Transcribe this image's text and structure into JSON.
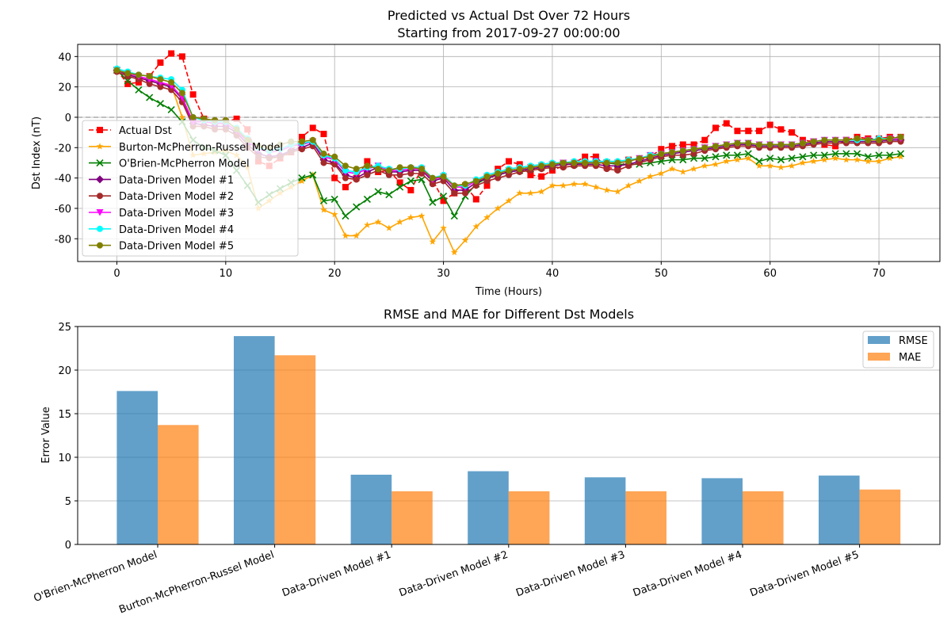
{
  "chart_data": [
    {
      "type": "line",
      "title": "Predicted vs Actual Dst Over 72 Hours",
      "subtitle": "Starting from 2017-09-27 00:00:00",
      "xlabel": "Time (Hours)",
      "ylabel": "Dst Index (nT)",
      "xlim": [
        -3.6,
        75.6
      ],
      "ylim": [
        -95,
        48
      ],
      "xticks": [
        0,
        10,
        20,
        30,
        40,
        50,
        60,
        70
      ],
      "yticks": [
        -80,
        -60,
        -40,
        -20,
        0,
        20,
        40
      ],
      "grid": true,
      "zero_line": 0,
      "legend_position": "center-left",
      "x": [
        0,
        1,
        2,
        3,
        4,
        5,
        6,
        7,
        8,
        9,
        10,
        11,
        12,
        13,
        14,
        15,
        16,
        17,
        18,
        19,
        20,
        21,
        22,
        23,
        24,
        25,
        26,
        27,
        28,
        29,
        30,
        31,
        32,
        33,
        34,
        35,
        36,
        37,
        38,
        39,
        40,
        41,
        42,
        43,
        44,
        45,
        46,
        47,
        48,
        49,
        50,
        51,
        52,
        53,
        54,
        55,
        56,
        57,
        58,
        59,
        60,
        61,
        62,
        63,
        64,
        65,
        66,
        67,
        68,
        69,
        70,
        71,
        72
      ],
      "series": [
        {
          "name": "Actual Dst",
          "color": "#ff0000",
          "marker": "square",
          "dashed": true,
          "values": [
            31,
            22,
            23,
            27,
            36,
            42,
            40,
            15,
            -1,
            -3,
            -3,
            -1,
            -8,
            -29,
            -32,
            -27,
            -23,
            -13,
            -7,
            -11,
            -40,
            -46,
            -40,
            -29,
            -36,
            -35,
            -43,
            -48,
            -34,
            -41,
            -55,
            -50,
            -45,
            -54,
            -45,
            -34,
            -29,
            -31,
            -38,
            -39,
            -35,
            -32,
            -30,
            -26,
            -26,
            -33,
            -34,
            -28,
            -28,
            -26,
            -21,
            -19,
            -18,
            -18,
            -15,
            -7,
            -4,
            -9,
            -9,
            -9,
            -5,
            -8,
            -10,
            -15,
            -16,
            -18,
            -19,
            -15,
            -13,
            -14,
            -14,
            -13,
            -13
          ]
        },
        {
          "name": "Burton-McPherron-Russel Model",
          "color": "#ffa500",
          "marker": "star",
          "dashed": false,
          "values": [
            31,
            28,
            26,
            24,
            22,
            21,
            0,
            -25,
            -24,
            -23,
            -22,
            -25,
            -33,
            -60,
            -55,
            -50,
            -46,
            -42,
            -38,
            -61,
            -64,
            -78,
            -78,
            -71,
            -69,
            -73,
            -69,
            -66,
            -65,
            -82,
            -73,
            -89,
            -81,
            -72,
            -66,
            -60,
            -55,
            -50,
            -50,
            -49,
            -45,
            -45,
            -44,
            -44,
            -46,
            -48,
            -49,
            -45,
            -42,
            -39,
            -37,
            -34,
            -36,
            -34,
            -32,
            -31,
            -29,
            -28,
            -27,
            -32,
            -32,
            -33,
            -32,
            -30,
            -29,
            -28,
            -27,
            -28,
            -28,
            -29,
            -29,
            -27,
            -26
          ]
        },
        {
          "name": "O'Brien-McPherron Model",
          "color": "#008000",
          "marker": "x",
          "dashed": false,
          "values": [
            31,
            24,
            18,
            13,
            9,
            5,
            -3,
            -15,
            -20,
            -22,
            -25,
            -35,
            -45,
            -56,
            -51,
            -47,
            -43,
            -40,
            -38,
            -55,
            -54,
            -65,
            -59,
            -54,
            -49,
            -51,
            -46,
            -42,
            -41,
            -56,
            -52,
            -65,
            -52,
            -44,
            -40,
            -38,
            -36,
            -35,
            -34,
            -33,
            -32,
            -31,
            -31,
            -30,
            -30,
            -30,
            -31,
            -31,
            -31,
            -30,
            -29,
            -28,
            -28,
            -27,
            -27,
            -26,
            -25,
            -25,
            -24,
            -29,
            -27,
            -28,
            -27,
            -26,
            -25,
            -25,
            -24,
            -24,
            -24,
            -26,
            -25,
            -25,
            -24
          ]
        },
        {
          "name": "Data-Driven Model #1",
          "color": "#800080",
          "marker": "diamond",
          "dashed": false,
          "values": [
            31,
            28,
            26,
            24,
            22,
            20,
            12,
            -4,
            -5,
            -6,
            -6,
            -10,
            -18,
            -24,
            -26,
            -25,
            -22,
            -20,
            -17,
            -28,
            -30,
            -38,
            -40,
            -36,
            -33,
            -36,
            -36,
            -35,
            -35,
            -42,
            -40,
            -48,
            -48,
            -43,
            -40,
            -38,
            -36,
            -35,
            -34,
            -33,
            -32,
            -31,
            -31,
            -31,
            -31,
            -32,
            -32,
            -31,
            -29,
            -27,
            -25,
            -24,
            -23,
            -22,
            -21,
            -20,
            -19,
            -18,
            -18,
            -19,
            -19,
            -19,
            -19,
            -18,
            -17,
            -16,
            -16,
            -16,
            -16,
            -16,
            -16,
            -15,
            -15
          ]
        },
        {
          "name": "Data-Driven Model #2",
          "color": "#a52a2a",
          "marker": "circle",
          "dashed": false,
          "values": [
            30,
            27,
            25,
            22,
            20,
            18,
            10,
            -6,
            -6,
            -8,
            -8,
            -12,
            -20,
            -26,
            -27,
            -26,
            -23,
            -21,
            -19,
            -30,
            -31,
            -40,
            -41,
            -38,
            -35,
            -38,
            -38,
            -37,
            -37,
            -44,
            -42,
            -50,
            -50,
            -45,
            -42,
            -40,
            -38,
            -36,
            -35,
            -34,
            -33,
            -33,
            -32,
            -32,
            -32,
            -34,
            -35,
            -32,
            -30,
            -28,
            -26,
            -25,
            -25,
            -24,
            -22,
            -21,
            -20,
            -19,
            -19,
            -20,
            -20,
            -20,
            -20,
            -19,
            -18,
            -17,
            -17,
            -17,
            -17,
            -17,
            -17,
            -16,
            -16
          ]
        },
        {
          "name": "Data-Driven Model #3",
          "color": "#ff00ff",
          "marker": "triangle",
          "dashed": false,
          "values": [
            31,
            29,
            27,
            25,
            23,
            21,
            13,
            -3,
            -3,
            -4,
            -4,
            -9,
            -16,
            -21,
            -23,
            -22,
            -19,
            -18,
            -16,
            -26,
            -28,
            -36,
            -37,
            -34,
            -32,
            -35,
            -35,
            -34,
            -34,
            -41,
            -39,
            -46,
            -46,
            -42,
            -39,
            -37,
            -35,
            -34,
            -33,
            -32,
            -31,
            -30,
            -30,
            -30,
            -29,
            -30,
            -30,
            -29,
            -27,
            -25,
            -24,
            -23,
            -22,
            -21,
            -20,
            -19,
            -18,
            -17,
            -17,
            -18,
            -18,
            -18,
            -18,
            -17,
            -16,
            -15,
            -15,
            -15,
            -15,
            -15,
            -15,
            -14,
            -14
          ]
        },
        {
          "name": "Data-Driven Model #4",
          "color": "#00ffff",
          "marker": "circle",
          "dashed": false,
          "values": [
            32,
            30,
            28,
            27,
            26,
            25,
            18,
            0,
            -2,
            -3,
            -3,
            -7,
            -14,
            -20,
            -22,
            -21,
            -18,
            -17,
            -16,
            -25,
            -27,
            -35,
            -36,
            -33,
            -32,
            -34,
            -34,
            -33,
            -33,
            -40,
            -38,
            -45,
            -45,
            -41,
            -38,
            -36,
            -34,
            -33,
            -32,
            -31,
            -30,
            -30,
            -29,
            -29,
            -29,
            -29,
            -29,
            -28,
            -27,
            -25,
            -24,
            -23,
            -22,
            -21,
            -20,
            -19,
            -18,
            -17,
            -17,
            -18,
            -18,
            -18,
            -18,
            -17,
            -16,
            -15,
            -15,
            -15,
            -15,
            -15,
            -14,
            -14,
            -13
          ]
        },
        {
          "name": "Data-Driven Model #5",
          "color": "#808000",
          "marker": "circle",
          "dashed": false,
          "values": [
            31,
            29,
            28,
            27,
            25,
            23,
            16,
            0,
            -1,
            -2,
            -2,
            -8,
            -15,
            -19,
            -20,
            -18,
            -16,
            -16,
            -15,
            -24,
            -26,
            -32,
            -34,
            -32,
            -34,
            -35,
            -33,
            -33,
            -34,
            -40,
            -39,
            -45,
            -44,
            -42,
            -39,
            -37,
            -35,
            -34,
            -33,
            -32,
            -31,
            -30,
            -30,
            -30,
            -30,
            -30,
            -30,
            -29,
            -27,
            -26,
            -24,
            -23,
            -22,
            -21,
            -20,
            -19,
            -18,
            -17,
            -17,
            -18,
            -18,
            -18,
            -18,
            -17,
            -16,
            -15,
            -15,
            -15,
            -14,
            -15,
            -15,
            -14,
            -13
          ]
        }
      ]
    },
    {
      "type": "bar",
      "title": "RMSE and MAE for Different Dst Models",
      "xlabel": "",
      "ylabel": "Error Value",
      "ylim": [
        0,
        25
      ],
      "yticks": [
        0,
        5,
        10,
        15,
        20,
        25
      ],
      "grid": true,
      "legend_position": "top-right",
      "categories": [
        "O'Brien-McPherron Model",
        "Burton-McPherron-Russel Model",
        "Data-Driven Model #1",
        "Data-Driven Model #2",
        "Data-Driven Model #3",
        "Data-Driven Model #4",
        "Data-Driven Model #5"
      ],
      "series": [
        {
          "name": "RMSE",
          "color": "#1f77b4",
          "opacity": 0.7,
          "values": [
            17.6,
            23.9,
            8.0,
            8.4,
            7.7,
            7.6,
            7.9
          ]
        },
        {
          "name": "MAE",
          "color": "#ff7f0e",
          "opacity": 0.7,
          "values": [
            13.7,
            21.7,
            6.1,
            6.1,
            6.1,
            6.1,
            6.3
          ]
        }
      ]
    }
  ]
}
